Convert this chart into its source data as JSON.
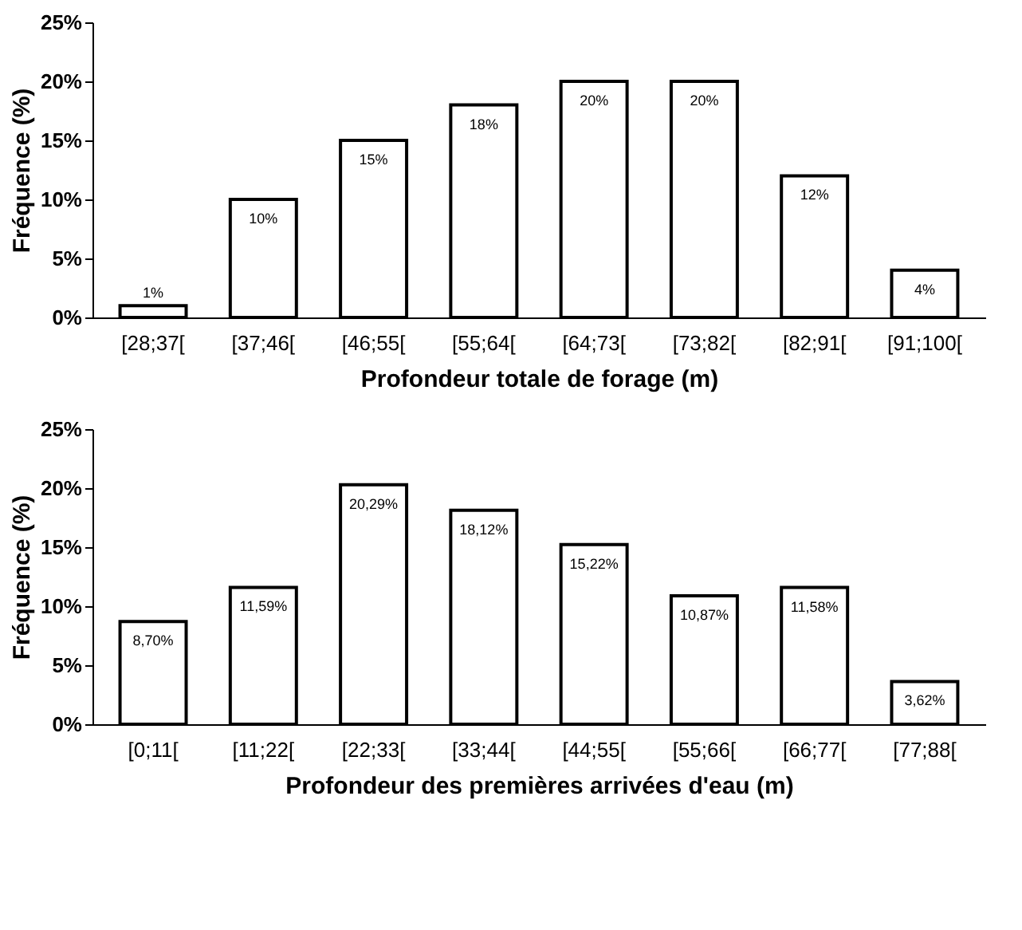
{
  "chart_data": [
    {
      "type": "bar",
      "xlabel": "Profondeur totale de forage (m)",
      "ylabel": "Fréquence (%)",
      "categories": [
        "[28;37[",
        "[37;46[",
        "[46;55[",
        "[55;64[",
        "[64;73[",
        "[73;82[",
        "[82;91[",
        "[91;100["
      ],
      "values": [
        1,
        10,
        15,
        18,
        20,
        20,
        12,
        4
      ],
      "value_labels": [
        "1%",
        "10%",
        "15%",
        "18%",
        "20%",
        "20%",
        "12%",
        "4%"
      ],
      "color": "#ffffff",
      "ylim": [
        0,
        25
      ],
      "yticks": [
        {
          "value": 0,
          "label": "0%"
        },
        {
          "value": 5,
          "label": "5%"
        },
        {
          "value": 10,
          "label": "10%"
        },
        {
          "value": 15,
          "label": "15%"
        },
        {
          "value": 20,
          "label": "20%"
        },
        {
          "value": 25,
          "label": "25%"
        }
      ],
      "grid": false
    },
    {
      "type": "bar",
      "xlabel": "Profondeur des premières arrivées d'eau (m)",
      "ylabel": "Fréquence (%)",
      "categories": [
        "[0;11[",
        "[11;22[",
        "[22;33[",
        "[33;44[",
        "[44;55[",
        "[55;66[",
        "[66;77[",
        "[77;88["
      ],
      "values": [
        8.7,
        11.59,
        20.29,
        18.12,
        15.22,
        10.87,
        11.58,
        3.62
      ],
      "value_labels": [
        "8,70%",
        "11,59%",
        "20,29%",
        "18,12%",
        "15,22%",
        "10,87%",
        "11,58%",
        "3,62%"
      ],
      "color": "#ffffff",
      "ylim": [
        0,
        25
      ],
      "yticks": [
        {
          "value": 0,
          "label": "0%"
        },
        {
          "value": 5,
          "label": "5%"
        },
        {
          "value": 10,
          "label": "10%"
        },
        {
          "value": 15,
          "label": "15%"
        },
        {
          "value": 20,
          "label": "20%"
        },
        {
          "value": 25,
          "label": "25%"
        }
      ],
      "grid": false
    }
  ]
}
